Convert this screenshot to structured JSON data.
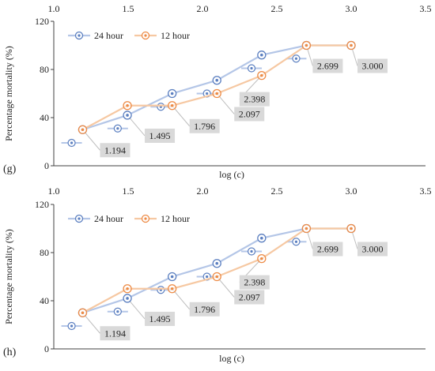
{
  "colors": {
    "series_24": "#5b7fc0",
    "series_24_light": "#b4c6e7",
    "series_12": "#ed8b46",
    "series_12_light": "#f6c8a2",
    "label_box": "#d9d9d9",
    "axis": "#404040"
  },
  "chart_data": [
    {
      "panel_label": "(g)",
      "type": "line",
      "xlabel": "log (c)",
      "ylabel": "Percentage mortality (%)",
      "x_top_ticks": [
        "1.0",
        "1.5",
        "2.0",
        "2.5",
        "3.0",
        "3.5"
      ],
      "y_ticks": [
        "0",
        "40",
        "80",
        "120"
      ],
      "xlim": [
        1.0,
        3.5
      ],
      "ylim": [
        0,
        120
      ],
      "grid": false,
      "legend_position": "top-left",
      "series": [
        {
          "name": "24 hour",
          "color_key": "series_24",
          "x": [
            1.194,
            1.495,
            1.796,
            2.097,
            2.398,
            2.699,
            3.0
          ],
          "y": [
            30,
            42,
            60,
            71,
            92,
            100,
            100
          ]
        },
        {
          "name": "12 hour",
          "color_key": "series_12",
          "x": [
            1.194,
            1.495,
            1.796,
            2.097,
            2.398,
            2.699,
            3.0
          ],
          "y": [
            30,
            50,
            50,
            60,
            75,
            100,
            100
          ]
        }
      ],
      "offset_markers": [
        {
          "x": 1.12,
          "y": 19
        },
        {
          "x": 1.43,
          "y": 31
        },
        {
          "x": 1.72,
          "y": 49
        },
        {
          "x": 2.03,
          "y": 60
        },
        {
          "x": 2.33,
          "y": 81
        },
        {
          "x": 2.63,
          "y": 89
        }
      ],
      "annotations": [
        {
          "text": "1.194",
          "x": 1.194,
          "y": 30
        },
        {
          "text": "1.495",
          "x": 1.495,
          "y": 42
        },
        {
          "text": "1.796",
          "x": 1.796,
          "y": 50
        },
        {
          "text": "2.097",
          "x": 2.097,
          "y": 60
        },
        {
          "text": "2.398",
          "x": 2.398,
          "y": 75
        },
        {
          "text": "2.699",
          "x": 2.699,
          "y": 100
        },
        {
          "text": "3.000",
          "x": 3.0,
          "y": 100
        }
      ]
    },
    {
      "panel_label": "(h)",
      "type": "line",
      "xlabel": "log (c)",
      "ylabel": "Percentage mortality (%)",
      "x_top_ticks": [
        "1.0",
        "1.5",
        "2.0",
        "2.5",
        "3.0",
        "3.5"
      ],
      "y_ticks": [
        "0",
        "40",
        "80",
        "120"
      ],
      "xlim": [
        1.0,
        3.5
      ],
      "ylim": [
        0,
        120
      ],
      "grid": false,
      "legend_position": "top-left",
      "series": [
        {
          "name": "24 hour",
          "color_key": "series_24",
          "x": [
            1.194,
            1.495,
            1.796,
            2.097,
            2.398,
            2.699,
            3.0
          ],
          "y": [
            30,
            42,
            60,
            71,
            92,
            100,
            100
          ]
        },
        {
          "name": "12 hour",
          "color_key": "series_12",
          "x": [
            1.194,
            1.495,
            1.796,
            2.097,
            2.398,
            2.699,
            3.0
          ],
          "y": [
            30,
            50,
            50,
            60,
            75,
            100,
            100
          ]
        }
      ],
      "offset_markers": [
        {
          "x": 1.12,
          "y": 19
        },
        {
          "x": 1.43,
          "y": 31
        },
        {
          "x": 1.72,
          "y": 49
        },
        {
          "x": 2.03,
          "y": 60
        },
        {
          "x": 2.33,
          "y": 81
        },
        {
          "x": 2.63,
          "y": 89
        }
      ],
      "annotations": [
        {
          "text": "1.194",
          "x": 1.194,
          "y": 30
        },
        {
          "text": "1.495",
          "x": 1.495,
          "y": 42
        },
        {
          "text": "1.796",
          "x": 1.796,
          "y": 50
        },
        {
          "text": "2.097",
          "x": 2.097,
          "y": 60
        },
        {
          "text": "2.398",
          "x": 2.398,
          "y": 75
        },
        {
          "text": "2.699",
          "x": 2.699,
          "y": 100
        },
        {
          "text": "3.000",
          "x": 3.0,
          "y": 100
        }
      ]
    }
  ]
}
